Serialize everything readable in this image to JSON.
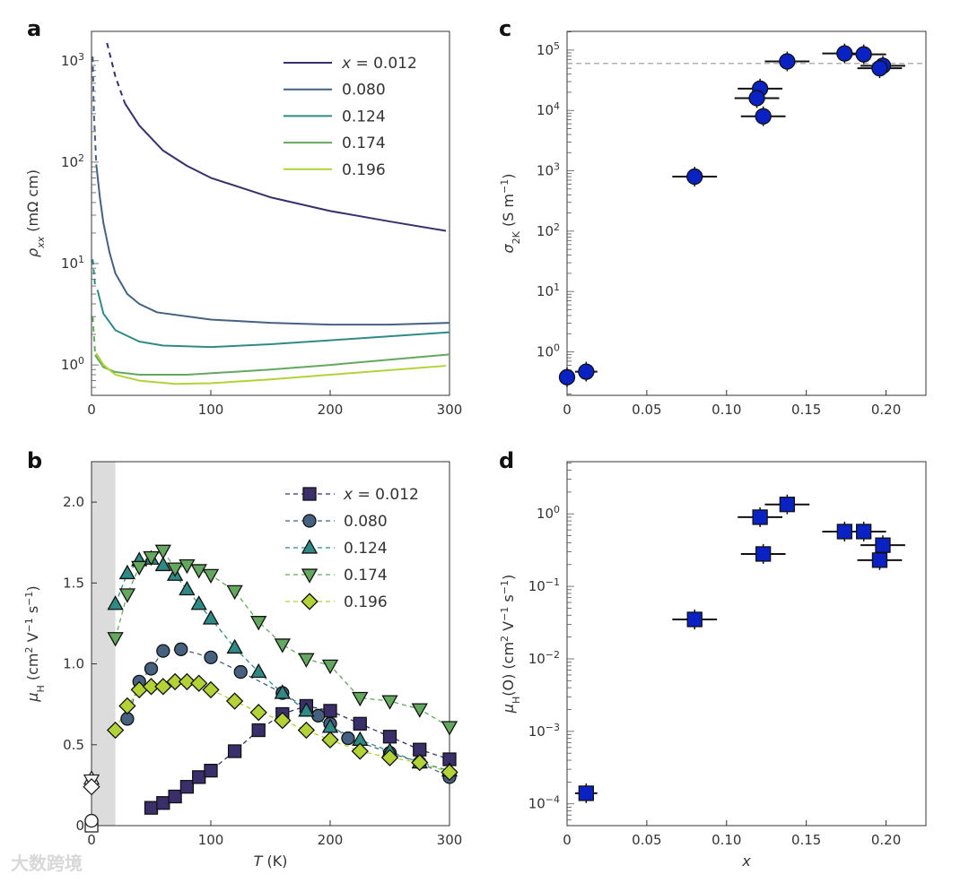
{
  "watermark": "大数跨境",
  "colors": {
    "x0012": "#3b2f6b",
    "x0080": "#46617f",
    "x0124": "#2f8a86",
    "x0174": "#63a85e",
    "x0196": "#b3d236",
    "blue": "#0a22c4",
    "shade": "#dcdcdc"
  },
  "chart_data": [
    {
      "panel": "a",
      "type": "line",
      "xlabel": "",
      "xlim": [
        0,
        300
      ],
      "xticks": [
        0,
        100,
        200,
        300
      ],
      "ylabel": [
        {
          "t": "ρ",
          "i": true
        },
        {
          "t": "xx",
          "sub": true,
          "i": true
        },
        {
          "t": " (mΩ cm)"
        }
      ],
      "yscale": "log",
      "ylim_log10": [
        -0.3,
        3.29
      ],
      "yticks_exp": [
        0,
        1,
        2,
        3
      ],
      "legend": "top-right",
      "series": [
        {
          "name": "x = 0.012",
          "italic_prefix": "x",
          "label": " = 0.012",
          "color_key": "x0012",
          "dashed": [
            [
              13,
              1500
            ],
            [
              20,
              700
            ],
            [
              28,
              380
            ]
          ],
          "points": [
            [
              28,
              380
            ],
            [
              40,
              230
            ],
            [
              60,
              130
            ],
            [
              80,
              92
            ],
            [
              100,
              70
            ],
            [
              150,
              45
            ],
            [
              200,
              33
            ],
            [
              250,
              26
            ],
            [
              297,
              21
            ]
          ]
        },
        {
          "name": "0.080",
          "label": "0.080",
          "color_key": "x0080",
          "dashed": [
            [
              1,
              1100
            ],
            [
              2,
              300
            ],
            [
              4,
              95
            ]
          ],
          "points": [
            [
              4,
              95
            ],
            [
              7,
              45
            ],
            [
              10,
              25
            ],
            [
              15,
              13
            ],
            [
              20,
              8
            ],
            [
              30,
              5
            ],
            [
              40,
              4
            ],
            [
              55,
              3.3
            ],
            [
              100,
              2.8
            ],
            [
              150,
              2.6
            ],
            [
              200,
              2.5
            ],
            [
              250,
              2.5
            ],
            [
              300,
              2.6
            ]
          ]
        },
        {
          "name": "0.124",
          "label": "0.124",
          "color_key": "x0124",
          "dashed": [
            [
              1,
              11
            ],
            [
              3,
              6
            ]
          ],
          "points": [
            [
              5,
              5.5
            ],
            [
              10,
              3.2
            ],
            [
              20,
              2.2
            ],
            [
              40,
              1.7
            ],
            [
              60,
              1.55
            ],
            [
              100,
              1.5
            ],
            [
              150,
              1.6
            ],
            [
              200,
              1.75
            ],
            [
              300,
              2.1
            ]
          ]
        },
        {
          "name": "0.174",
          "label": "0.174",
          "color_key": "x0174",
          "dashed": [
            [
              1,
              3
            ],
            [
              3,
              1.3
            ]
          ],
          "points": [
            [
              3,
              1.25
            ],
            [
              10,
              0.95
            ],
            [
              20,
              0.85
            ],
            [
              40,
              0.8
            ],
            [
              80,
              0.8
            ],
            [
              150,
              0.9
            ],
            [
              200,
              1.0
            ],
            [
              300,
              1.27
            ]
          ]
        },
        {
          "name": "0.196",
          "label": "0.196",
          "color_key": "x0196",
          "points": [
            [
              4,
              1.3
            ],
            [
              10,
              1.0
            ],
            [
              20,
              0.8
            ],
            [
              40,
              0.7
            ],
            [
              70,
              0.65
            ],
            [
              100,
              0.66
            ],
            [
              150,
              0.72
            ],
            [
              200,
              0.8
            ],
            [
              297,
              0.98
            ]
          ]
        }
      ]
    },
    {
      "panel": "b",
      "type": "scatter",
      "xlabel": [
        {
          "t": "T",
          "i": true
        },
        {
          "t": " (K)"
        }
      ],
      "xlim": [
        0,
        300
      ],
      "xticks": [
        0,
        100,
        200,
        300
      ],
      "ylabel": [
        {
          "t": "μ",
          "i": true
        },
        {
          "t": "H",
          "sub": true
        },
        {
          "t": " (cm"
        },
        {
          "t": "2",
          "sup": true
        },
        {
          "t": " V"
        },
        {
          "t": "−1",
          "sup": true
        },
        {
          "t": " s"
        },
        {
          "t": "−1",
          "sup": true
        },
        {
          "t": ")"
        }
      ],
      "ylim": [
        0,
        2.25
      ],
      "yticks": [
        0,
        0.5,
        1.0,
        1.5,
        2.0
      ],
      "ytick_labels": [
        "0",
        "0.5",
        "1.0",
        "1.5",
        "2.0"
      ],
      "shaded_region_T": [
        0,
        20
      ],
      "legend": "top-right",
      "series": [
        {
          "name": "x = 0.012",
          "italic_prefix": "x",
          "label": " = 0.012",
          "marker": "square",
          "color_key": "x0012",
          "open_T0": 0.0,
          "points": [
            [
              50,
              0.11
            ],
            [
              60,
              0.14
            ],
            [
              70,
              0.18
            ],
            [
              80,
              0.24
            ],
            [
              90,
              0.3
            ],
            [
              100,
              0.34
            ],
            [
              120,
              0.46
            ],
            [
              140,
              0.59
            ],
            [
              160,
              0.69
            ],
            [
              180,
              0.74
            ],
            [
              200,
              0.71
            ],
            [
              225,
              0.63
            ],
            [
              250,
              0.55
            ],
            [
              275,
              0.47
            ],
            [
              300,
              0.41
            ]
          ]
        },
        {
          "name": "0.080",
          "label": "0.080",
          "marker": "circle",
          "color_key": "x0080",
          "open_T0": 0.03,
          "points": [
            [
              30,
              0.66
            ],
            [
              40,
              0.89
            ],
            [
              50,
              0.97
            ],
            [
              60,
              1.08
            ],
            [
              75,
              1.09
            ],
            [
              100,
              1.04
            ],
            [
              125,
              0.95
            ],
            [
              160,
              0.82
            ],
            [
              190,
              0.68
            ],
            [
              200,
              0.63
            ],
            [
              215,
              0.54
            ],
            [
              250,
              0.45
            ],
            [
              275,
              0.39
            ],
            [
              300,
              0.3
            ]
          ]
        },
        {
          "name": "0.124",
          "label": "0.124",
          "marker": "triangle-up",
          "color_key": "x0124",
          "open_T0": 0.29,
          "points": [
            [
              20,
              1.37
            ],
            [
              30,
              1.56
            ],
            [
              40,
              1.64
            ],
            [
              50,
              1.65
            ],
            [
              60,
              1.61
            ],
            [
              70,
              1.55
            ],
            [
              80,
              1.46
            ],
            [
              90,
              1.37
            ],
            [
              100,
              1.28
            ],
            [
              120,
              1.1
            ],
            [
              140,
              0.95
            ],
            [
              160,
              0.82
            ],
            [
              180,
              0.71
            ],
            [
              200,
              0.61
            ],
            [
              225,
              0.53
            ],
            [
              250,
              0.46
            ],
            [
              275,
              0.39
            ],
            [
              300,
              0.34
            ]
          ]
        },
        {
          "name": "0.174",
          "label": "0.174",
          "marker": "triangle-down",
          "color_key": "x0174",
          "open_T0": 0.28,
          "points": [
            [
              20,
              1.16
            ],
            [
              30,
              1.43
            ],
            [
              40,
              1.6
            ],
            [
              50,
              1.66
            ],
            [
              60,
              1.7
            ],
            [
              70,
              1.59
            ],
            [
              80,
              1.61
            ],
            [
              90,
              1.58
            ],
            [
              100,
              1.55
            ],
            [
              120,
              1.45
            ],
            [
              140,
              1.26
            ],
            [
              160,
              1.12
            ],
            [
              180,
              1.03
            ],
            [
              200,
              0.99
            ],
            [
              225,
              0.79
            ],
            [
              250,
              0.77
            ],
            [
              275,
              0.72
            ],
            [
              300,
              0.61
            ]
          ]
        },
        {
          "name": "0.196",
          "label": "0.196",
          "marker": "diamond",
          "color_key": "x0196",
          "open_T0": 0.24,
          "points": [
            [
              20,
              0.59
            ],
            [
              30,
              0.74
            ],
            [
              40,
              0.84
            ],
            [
              50,
              0.86
            ],
            [
              60,
              0.86
            ],
            [
              70,
              0.89
            ],
            [
              80,
              0.89
            ],
            [
              90,
              0.88
            ],
            [
              100,
              0.84
            ],
            [
              120,
              0.77
            ],
            [
              140,
              0.7
            ],
            [
              160,
              0.65
            ],
            [
              180,
              0.59
            ],
            [
              200,
              0.53
            ],
            [
              225,
              0.46
            ],
            [
              250,
              0.42
            ],
            [
              275,
              0.39
            ],
            [
              300,
              0.33
            ]
          ]
        }
      ]
    },
    {
      "panel": "c",
      "type": "scatter",
      "xlabel": "",
      "xlim": [
        0,
        0.225
      ],
      "xticks": [
        0,
        0.05,
        0.1,
        0.15,
        0.2
      ],
      "xtick_labels": [
        "0",
        "0.05",
        "0.10",
        "0.15",
        "0.20"
      ],
      "ylabel": [
        {
          "t": "σ",
          "i": true
        },
        {
          "t": "2K",
          "sub": true
        },
        {
          "t": " (S m"
        },
        {
          "t": "−1",
          "sup": true
        },
        {
          "t": ")"
        }
      ],
      "yscale": "log",
      "ylim_log10": [
        -0.72,
        5.31
      ],
      "yticks_exp": [
        0,
        1,
        2,
        3,
        4,
        5
      ],
      "reference_line_y": 60000,
      "marker": "circle",
      "color_key": "blue",
      "points": [
        [
          0,
          0.38,
          0
        ],
        [
          0.012,
          0.47,
          0.007
        ],
        [
          0.08,
          800,
          0.014
        ],
        [
          0.121,
          23000,
          0.014
        ],
        [
          0.119,
          16000,
          0.014
        ],
        [
          0.123,
          8000,
          0.014
        ],
        [
          0.138,
          65000,
          0.014
        ],
        [
          0.174,
          88000,
          0.014
        ],
        [
          0.186,
          85000,
          0.014
        ],
        [
          0.198,
          55000,
          0.014
        ],
        [
          0.196,
          50000,
          0.014
        ]
      ]
    },
    {
      "panel": "d",
      "type": "scatter",
      "xlabel": [
        {
          "t": "x",
          "i": true
        }
      ],
      "xlim": [
        0,
        0.225
      ],
      "xticks": [
        0,
        0.05,
        0.1,
        0.15,
        0.2
      ],
      "xtick_labels": [
        "0",
        "0.05",
        "0.10",
        "0.15",
        "0.20"
      ],
      "ylabel": [
        {
          "t": "μ",
          "i": true
        },
        {
          "t": "H",
          "sub": true
        },
        {
          "t": "(O) (cm"
        },
        {
          "t": "2",
          "sup": true
        },
        {
          "t": " V"
        },
        {
          "t": "−1",
          "sup": true
        },
        {
          "t": " s"
        },
        {
          "t": "−1",
          "sup": true
        },
        {
          "t": ")"
        }
      ],
      "yscale": "log",
      "ylim_log10": [
        -4.3,
        0.72
      ],
      "yticks_exp": [
        -4,
        -3,
        -2,
        -1,
        0
      ],
      "marker": "square",
      "color_key": "blue",
      "points": [
        [
          0.012,
          0.00014,
          0.007
        ],
        [
          0.08,
          0.035,
          0.014
        ],
        [
          0.121,
          0.9,
          0.014
        ],
        [
          0.138,
          1.35,
          0.014
        ],
        [
          0.123,
          0.28,
          0.014
        ],
        [
          0.174,
          0.57,
          0.014
        ],
        [
          0.186,
          0.57,
          0.014
        ],
        [
          0.198,
          0.37,
          0.014
        ],
        [
          0.196,
          0.23,
          0.014
        ]
      ]
    }
  ]
}
